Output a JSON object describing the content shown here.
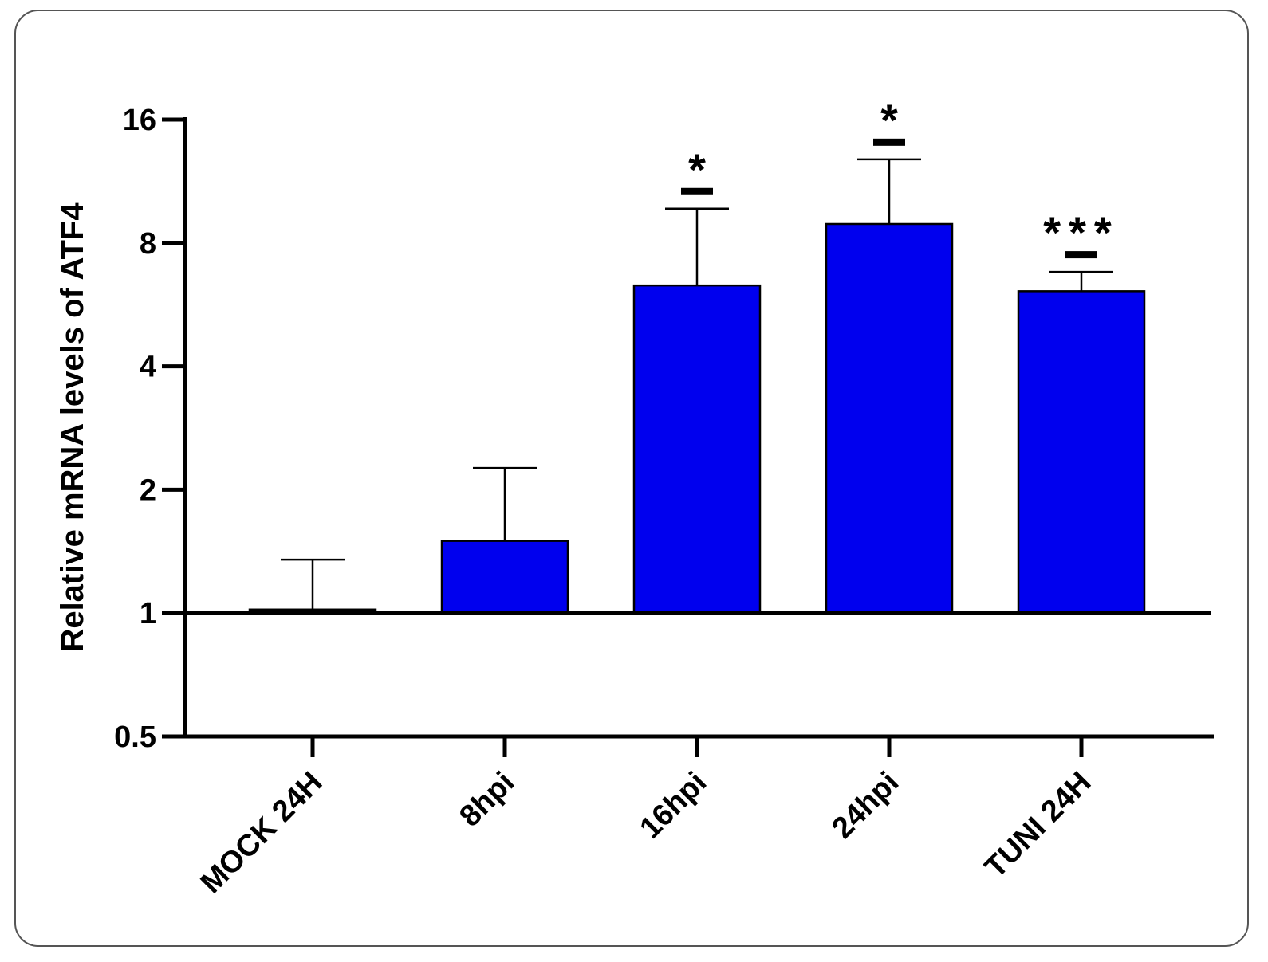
{
  "chart_data": {
    "type": "bar",
    "categories": [
      "MOCK 24H",
      "8hpi",
      "16hpi",
      "24hpi",
      "TUNI 24H"
    ],
    "values": [
      1.02,
      1.5,
      6.3,
      8.9,
      6.1
    ],
    "errors": [
      0.33,
      0.76,
      3.4,
      3.9,
      0.7
    ],
    "significance": [
      "",
      "",
      "*",
      "*",
      "***"
    ],
    "ylabel": "Relative mRNA levels of ATF4",
    "yscale": "log2",
    "ylim": [
      0.5,
      16
    ],
    "yticks": [
      0.5,
      1,
      2,
      4,
      8,
      16
    ],
    "yticklabels": [
      "0.5",
      "1",
      "2",
      "4",
      "8",
      "16"
    ],
    "baseline": 1,
    "bar_color": "#0000ee"
  }
}
